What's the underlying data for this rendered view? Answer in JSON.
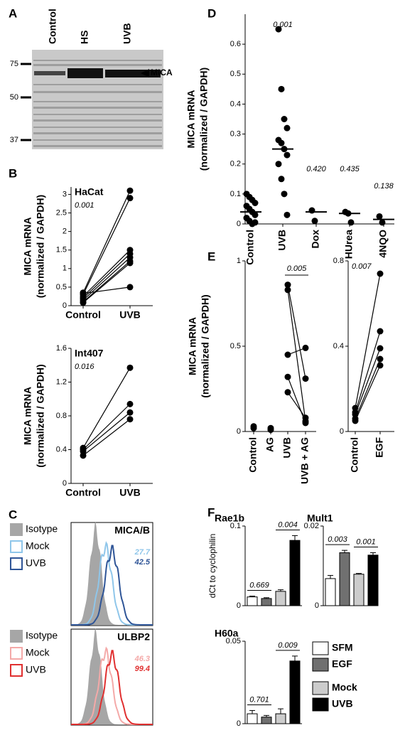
{
  "panel_labels": [
    "A",
    "B",
    "C",
    "D",
    "E",
    "F"
  ],
  "blot": {
    "lanes": [
      "Control",
      "HS",
      "UVB"
    ],
    "markers": [
      75,
      50,
      37
    ],
    "band": "MICA"
  },
  "chart_data": [
    {
      "type": "paired",
      "title": "HaCat",
      "annotation": "0.001",
      "ylabel": [
        "MICA mRNA",
        "(normalized / GAPDH)"
      ],
      "categories": [
        "Control",
        "UVB"
      ],
      "values": [
        [
          0.35,
          0.3,
          0.25,
          0.2,
          0.15,
          0.1,
          0.08,
          0.33
        ],
        [
          3.1,
          2.9,
          1.5,
          1.4,
          1.3,
          1.2,
          1.15,
          0.5
        ]
      ],
      "connect": [
        0,
        1
      ],
      "ylim": [
        0,
        3.2
      ],
      "yticks": [
        0,
        0.5,
        1,
        1.5,
        2,
        2.5,
        3
      ]
    },
    {
      "type": "paired",
      "title": "Int407",
      "annotation": "0.016",
      "ylabel": [
        "MICA mRNA",
        "(normalized / GAPDH)"
      ],
      "categories": [
        "Control",
        "UVB"
      ],
      "values": [
        [
          0.42,
          0.4,
          0.38,
          0.33
        ],
        [
          1.37,
          0.94,
          0.84,
          0.76
        ]
      ],
      "connect": [
        0,
        1
      ],
      "ylim": [
        0,
        1.6
      ],
      "yticks": [
        0,
        0.4,
        0.8,
        1.2,
        1.6
      ]
    },
    {
      "type": "flow",
      "title": "MICA/B",
      "series": [
        {
          "name": "Isotype",
          "color": "#a6a6a6"
        },
        {
          "name": "Mock",
          "color": "#8fc6ea",
          "value": 27.7
        },
        {
          "name": "UVB",
          "color": "#2f5597",
          "value": 42.5
        }
      ]
    },
    {
      "type": "flow",
      "title": "ULBP2",
      "series": [
        {
          "name": "Isotype",
          "color": "#a6a6a6"
        },
        {
          "name": "Mock",
          "color": "#f4a9a8",
          "value": 46.3
        },
        {
          "name": "UVB",
          "color": "#e03030",
          "value": 99.4
        }
      ]
    },
    {
      "type": "scatter-mean",
      "ylabel": [
        "MICA mRNA",
        "(normalized / GAPDH)"
      ],
      "categories": [
        "Control",
        "UVB",
        "Dox",
        "HUrea",
        "4NQO"
      ],
      "values": [
        [
          0.1,
          0.09,
          0.08,
          0.07,
          0.06,
          0.05,
          0.04,
          0.03,
          0.02,
          0.01,
          0.0,
          0.005
        ],
        [
          0.65,
          0.45,
          0.35,
          0.32,
          0.28,
          0.27,
          0.25,
          0.23,
          0.2,
          0.15,
          0.1,
          0.03
        ],
        [
          0.045,
          0.01
        ],
        [
          0.04,
          0.035,
          0.005
        ],
        [
          0.025,
          0.005
        ]
      ],
      "means": [
        0.04,
        0.25,
        0.04,
        0.035,
        0.015
      ],
      "annotations": [
        null,
        "0.001",
        "0.420",
        "0.435",
        "0.138"
      ],
      "ylim": [
        0,
        0.7
      ],
      "yticks": [
        0,
        0.1,
        0.2,
        0.3,
        0.4,
        0.5,
        0.6
      ]
    },
    {
      "type": "paired",
      "annotation": "0.005",
      "ylabel": [
        "MICA mRNA",
        "(normalized / GAPDH)"
      ],
      "categories": [
        "Control",
        "AG",
        "UVB",
        "UVB + AG"
      ],
      "values": [
        [
          0.03,
          0.02
        ],
        [
          0.02,
          0.01
        ],
        [
          0.86,
          0.83,
          0.45,
          0.32,
          0.23
        ],
        [
          0.31,
          0.06,
          0.49,
          0.05,
          0.08
        ]
      ],
      "connect": [
        2,
        3
      ],
      "ylim": [
        0,
        1
      ],
      "yticks": [
        0,
        0.5,
        1
      ]
    },
    {
      "type": "paired",
      "annotation": "0.007",
      "categories": [
        "Control",
        "EGF"
      ],
      "values": [
        [
          0.11,
          0.09,
          0.08,
          0.06,
          0.05
        ],
        [
          0.74,
          0.47,
          0.39,
          0.34,
          0.31
        ]
      ],
      "connect": [
        0,
        1
      ],
      "ylim": [
        0,
        0.8
      ],
      "yticks": [
        0,
        0.4,
        0.8
      ]
    },
    {
      "type": "bar",
      "title": "Rae1b",
      "ylabel": "dCt to cyclophilin",
      "values": [
        0.011,
        0.009,
        0.018,
        0.082
      ],
      "errors": [
        0.001,
        0.001,
        0.002,
        0.006
      ],
      "annotations": [
        "0.669",
        "0.004"
      ],
      "ylim": [
        0,
        0.1
      ],
      "yticks": [
        0,
        0.1
      ]
    },
    {
      "type": "bar",
      "title": "Mult1",
      "values": [
        0.0068,
        0.0133,
        0.0079,
        0.0127
      ],
      "errors": [
        0.0008,
        0.0006,
        0.0002,
        0.0006
      ],
      "annotations": [
        "0.003",
        "0.001"
      ],
      "ylim": [
        0,
        0.02
      ],
      "yticks": [
        0,
        0.02
      ]
    },
    {
      "type": "bar",
      "title": "H60a",
      "values": [
        0.006,
        0.004,
        0.006,
        0.038
      ],
      "errors": [
        0.002,
        0.001,
        0.003,
        0.003
      ],
      "annotations": [
        "0.701",
        "0.009"
      ],
      "ylim": [
        0,
        0.05
      ],
      "yticks": [
        0,
        0.05
      ]
    },
    {
      "type": "legend",
      "series": [
        {
          "name": "SFM",
          "color": "#ffffff"
        },
        {
          "name": "EGF",
          "color": "#707070"
        },
        {
          "name": "Mock",
          "color": "#cccccc"
        },
        {
          "name": "UVB",
          "color": "#000000"
        }
      ]
    }
  ]
}
